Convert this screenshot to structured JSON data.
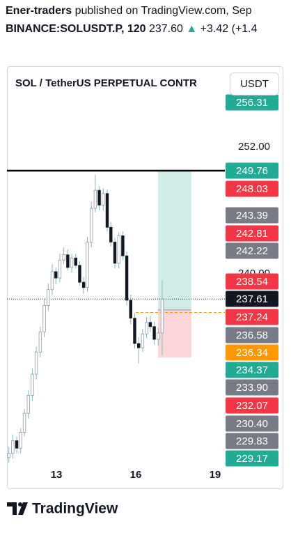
{
  "header": {
    "author": "Ener-traders",
    "text": "published on TradingView.com, Sep",
    "symbol": "BINANCE:SOLUSDT.P, 120",
    "price": "237.60",
    "arrow": "▲",
    "change": "+3.42",
    "change_pct": "(+1.4"
  },
  "currency_button": "USDT",
  "footer": "TradingView",
  "chart_data": {
    "type": "candlestick",
    "title": "SOL / TetherUS PERPETUAL CONTR",
    "x": [
      11.2,
      11.35,
      11.5,
      11.65,
      11.79,
      11.94,
      12.09,
      12.24,
      12.39,
      12.54,
      12.69,
      12.84,
      12.98,
      13.13,
      13.28,
      13.43,
      13.58,
      13.73,
      13.88,
      14.03,
      14.17,
      14.32,
      14.47,
      14.62,
      14.77,
      14.92,
      15.06,
      15.21,
      15.36,
      15.51,
      15.66,
      15.81,
      15.96,
      16.11,
      16.26,
      16.41,
      16.55,
      16.7,
      16.85,
      17.0
    ],
    "open": [
      222.6,
      223.0,
      224.2,
      223.5,
      225.0,
      226.8,
      228.5,
      230.5,
      232.6,
      234.5,
      237.0,
      238.5,
      240.2,
      239.6,
      241.3,
      241.8,
      240.6,
      241.5,
      240.8,
      239.2,
      238.7,
      243.0,
      246.2,
      247.9,
      246.5,
      247.6,
      244.4,
      243.0,
      241.0,
      243.6,
      241.7,
      237.5,
      235.8,
      233.4,
      233.0,
      234.3,
      235.4,
      235.0,
      233.8,
      234.4
    ],
    "high": [
      223.6,
      224.8,
      224.6,
      225.4,
      227.2,
      229.0,
      231.0,
      233.1,
      235.0,
      237.6,
      239.1,
      240.9,
      240.6,
      241.9,
      242.5,
      242.3,
      241.9,
      241.9,
      241.2,
      239.7,
      243.5,
      246.8,
      249.4,
      248.3,
      248.1,
      248.0,
      244.9,
      243.4,
      243.9,
      244.0,
      242.1,
      238.0,
      236.3,
      234.0,
      234.8,
      235.9,
      236.0,
      235.5,
      234.9,
      239.4
    ],
    "low": [
      222.0,
      222.5,
      223.0,
      223.0,
      224.6,
      226.3,
      228.0,
      230.0,
      232.1,
      234.0,
      236.5,
      238.0,
      239.0,
      239.2,
      240.9,
      240.3,
      240.1,
      240.5,
      238.9,
      238.1,
      238.3,
      242.5,
      245.8,
      246.0,
      246.0,
      244.0,
      242.6,
      240.5,
      240.5,
      241.3,
      237.0,
      235.2,
      232.9,
      231.5,
      232.6,
      233.9,
      234.5,
      233.3,
      233.2,
      232.3
    ],
    "close": [
      223.0,
      224.2,
      223.5,
      225.0,
      226.8,
      228.5,
      230.5,
      232.6,
      234.5,
      237.0,
      238.5,
      240.2,
      239.6,
      241.3,
      241.8,
      240.6,
      241.5,
      240.8,
      239.2,
      238.7,
      243.0,
      246.2,
      247.9,
      246.5,
      247.6,
      244.4,
      243.0,
      241.0,
      243.6,
      241.7,
      237.5,
      235.8,
      233.4,
      233.0,
      234.3,
      235.4,
      235.0,
      233.8,
      234.4,
      237.61
    ],
    "up_color": "#ffffff",
    "down_color": "#131722",
    "wick_color": "#7fb8b0",
    "xlim": [
      11.13,
      19.37
    ],
    "ylim": [
      222.13,
      259.65
    ],
    "xticks": [
      13,
      16,
      19
    ],
    "yticks": [
      {
        "value": 240,
        "label": "240.00"
      },
      {
        "value": 252,
        "label": "252.00"
      }
    ],
    "horizontal_line": {
      "value": 249.76,
      "color": "#000000"
    },
    "current_price": 237.61,
    "dashed_line": {
      "value": 236.34,
      "start": 16.0,
      "color": "#ff9800"
    },
    "position": {
      "target": 249.76,
      "entry": 236.58,
      "stop": 232.07,
      "start": 16.84,
      "end": 18.1,
      "profit_color": "#d1ece6",
      "loss_color": "#fbd5d8"
    },
    "price_labels": [
      {
        "value": 256.31,
        "label": "256.31",
        "color": "#22ab94"
      },
      {
        "value": 249.76,
        "label": "249.76",
        "color": "#22ab94"
      },
      {
        "value": 248.03,
        "label": "248.03",
        "color": "#f23645"
      },
      {
        "value": 243.39,
        "label": "243.39",
        "color": "#787b86"
      },
      {
        "value": 242.81,
        "label": "242.81",
        "color": "#f23645"
      },
      {
        "value": 242.22,
        "label": "242.22",
        "color": "#787b86"
      },
      {
        "value": 238.54,
        "label": "238.54",
        "color": "#f23645"
      },
      {
        "value": 237.61,
        "label": "237.61",
        "color": "#131722"
      },
      {
        "value": 237.24,
        "label": "237.24",
        "color": "#f23645"
      },
      {
        "value": 236.58,
        "label": "236.58",
        "color": "#787b86"
      },
      {
        "value": 236.34,
        "label": "236.34",
        "color": "#ff9800"
      },
      {
        "value": 234.37,
        "label": "234.37",
        "color": "#22ab94"
      },
      {
        "value": 233.9,
        "label": "233.90",
        "color": "#787b86"
      },
      {
        "value": 232.07,
        "label": "232.07",
        "color": "#f23645"
      },
      {
        "value": 230.4,
        "label": "230.40",
        "color": "#787b86"
      },
      {
        "value": 229.83,
        "label": "229.83",
        "color": "#787b86"
      },
      {
        "value": 229.17,
        "label": "229.17",
        "color": "#22ab94"
      }
    ]
  }
}
